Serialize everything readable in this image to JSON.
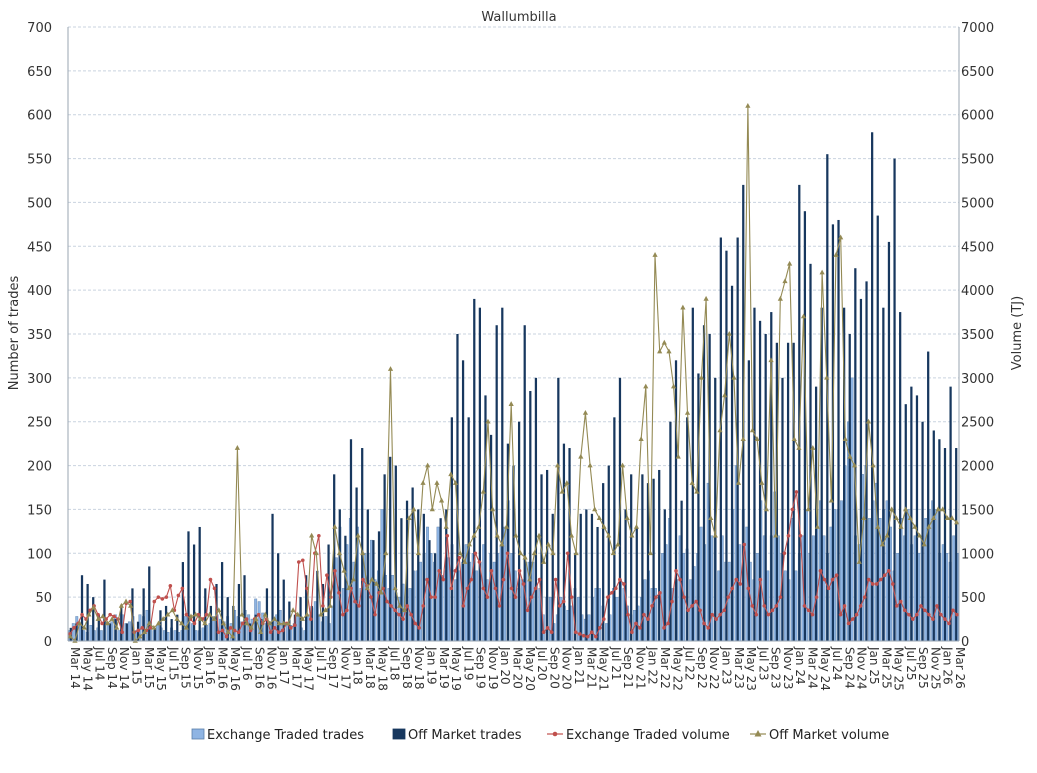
{
  "chart_data": {
    "type": "bar",
    "title": "Wallumbilla",
    "ylabel": "Number of trades",
    "y2label": "Volume (TJ)",
    "ylim": [
      0,
      700
    ],
    "y2lim": [
      0,
      7000
    ],
    "y_ticks": [
      0,
      50,
      100,
      150,
      200,
      250,
      300,
      350,
      400,
      450,
      500,
      550,
      600,
      650,
      700
    ],
    "y2_ticks": [
      0,
      500,
      1000,
      1500,
      2000,
      2500,
      3000,
      3500,
      4000,
      4500,
      5000,
      5500,
      6000,
      6500,
      7000
    ],
    "x_tick_labels": [
      "Mar 14",
      "May 14",
      "Jul 14",
      "Sep 14",
      "Nov 14",
      "Jan 15",
      "Mar 15",
      "May 15",
      "Jul 15",
      "Sep 15",
      "Nov 15",
      "Jan 16",
      "Mar 16",
      "May 16",
      "Jul 16",
      "Sep 16",
      "Nov 16",
      "Jan 17",
      "Mar 17",
      "May 17",
      "Jul 17",
      "Sep 17",
      "Nov 17",
      "Jan 18",
      "Mar 18",
      "May 18",
      "Jul 18",
      "Sep 18",
      "Nov 18",
      "Jan 19",
      "Mar 19",
      "May 19",
      "Jul 19",
      "Sep 19",
      "Nov 19",
      "Jan 20",
      "Mar 20",
      "May 20",
      "Jul 20",
      "Sep 20",
      "Nov 20",
      "Jan 21",
      "Mar 21",
      "May 21",
      "Jul 21",
      "Sep 21",
      "Nov 21",
      "Jan 22",
      "Mar 22",
      "May 22",
      "Jul 22",
      "Sep 22",
      "Nov 22",
      "Jan 23",
      "Mar 23",
      "May 23",
      "Jul 23",
      "Sep 23",
      "Nov 23",
      "Jan 24",
      "Mar 24",
      "May 24",
      "Jul 24",
      "Sep 24",
      "Nov 24",
      "Jan 25",
      "Mar 25",
      "May 25",
      "Jul 25",
      "Sep 25",
      "Nov 25",
      "Jan 26",
      "Mar 26"
    ],
    "grid": true,
    "legend_position": "bottom",
    "colors": {
      "exchange_trades": "#8eb4e3",
      "off_market_trades": "#17375e",
      "exchange_volume": "#c0504d",
      "off_market_volume": "#948a54"
    },
    "bar_series": [
      {
        "name": "Exchange Traded trades",
        "axis": "left",
        "values": [
          12,
          20,
          28,
          20,
          12,
          10,
          18,
          12,
          15,
          12,
          25,
          20,
          22,
          30,
          12,
          30,
          20,
          22,
          28,
          12,
          30,
          28,
          35,
          22,
          12,
          18,
          15,
          12,
          10,
          15,
          12,
          10,
          12,
          28,
          22,
          20,
          12,
          12,
          15,
          18,
          20,
          28,
          30,
          25,
          22,
          28,
          20,
          35,
          28,
          22,
          35,
          30,
          25,
          48,
          45,
          32,
          20,
          22,
          25,
          30,
          35,
          22,
          20,
          18,
          20,
          28,
          15,
          12,
          30,
          38,
          45,
          30,
          22,
          28,
          20,
          40,
          95,
          130,
          60,
          110,
          140,
          90,
          130,
          60,
          100,
          100,
          115,
          70,
          80,
          150,
          75,
          60,
          75,
          55,
          50,
          65,
          60,
          60,
          80,
          80,
          90,
          100,
          130,
          100,
          90,
          130,
          75,
          80,
          95,
          110,
          70,
          80,
          90,
          110,
          90,
          100,
          80,
          90,
          110,
          70,
          100,
          90,
          100,
          110,
          130,
          160,
          100,
          80,
          60,
          70,
          90,
          90,
          90,
          65,
          60,
          30,
          50,
          50,
          20,
          30,
          50,
          40,
          35,
          40,
          60,
          50,
          30,
          25,
          30,
          50,
          60,
          60,
          40,
          20,
          30,
          60,
          50,
          70,
          60,
          40,
          30,
          35,
          40,
          50,
          70,
          80,
          60,
          60,
          50,
          100,
          110,
          140,
          60,
          70,
          120,
          100,
          105,
          70,
          85,
          100,
          130,
          110,
          180,
          120,
          120,
          80,
          120,
          90,
          90,
          150,
          200,
          110,
          150,
          130,
          90,
          70,
          100,
          160,
          120,
          80,
          120,
          170,
          120,
          100,
          80,
          70,
          140,
          80,
          100,
          120,
          150,
          100,
          120,
          150,
          160,
          120,
          100,
          130,
          150,
          150,
          160,
          200,
          250,
          300,
          120,
          110,
          190,
          200,
          140,
          160,
          180,
          140,
          150,
          160,
          130,
          80,
          100,
          140,
          120,
          150,
          110,
          120,
          100,
          120,
          140,
          150,
          160,
          150,
          100,
          110,
          100,
          90,
          120,
          100
        ]
      },
      {
        "name": "Off Market trades",
        "axis": "left",
        "values": [
          15,
          20,
          75,
          65,
          50,
          30,
          70,
          20,
          25,
          40,
          20,
          60,
          22,
          60,
          85,
          15,
          35,
          40,
          25,
          30,
          90,
          125,
          110,
          130,
          60,
          40,
          65,
          90,
          50,
          40,
          65,
          75,
          20,
          30,
          25,
          60,
          145,
          100,
          70,
          45,
          30,
          50,
          75,
          40,
          80,
          65,
          110,
          190,
          150,
          120,
          230,
          175,
          220,
          150,
          115,
          125,
          190,
          210,
          200,
          140,
          160,
          175,
          150,
          145,
          115,
          100,
          140,
          150,
          255,
          350,
          320,
          255,
          390,
          380,
          280,
          235,
          360,
          380,
          225,
          200,
          250,
          360,
          285,
          300,
          190,
          195,
          145,
          300,
          225,
          220,
          100,
          145,
          150,
          145,
          130,
          180,
          200,
          255,
          300,
          150,
          190,
          130,
          190,
          180,
          185,
          195,
          150,
          250,
          320,
          160,
          255,
          380,
          305,
          360,
          350,
          300,
          460,
          445,
          405,
          460,
          520,
          320,
          380,
          365,
          350,
          375,
          340,
          300,
          340,
          340,
          520,
          490,
          430,
          290,
          380,
          555,
          475,
          480,
          380,
          350,
          425,
          390,
          410,
          580,
          485,
          380,
          455,
          550,
          375,
          270,
          290,
          280,
          250,
          330,
          240,
          230,
          220,
          290,
          220
        ]
      }
    ],
    "line_series": [
      {
        "name": "Exchange Traded volume",
        "axis": "right",
        "values": [
          80,
          150,
          200,
          300,
          250,
          350,
          400,
          300,
          200,
          250,
          300,
          280,
          250,
          100,
          430,
          450,
          100,
          120,
          150,
          120,
          150,
          450,
          500,
          480,
          500,
          630,
          350,
          520,
          600,
          300,
          250,
          200,
          300,
          250,
          300,
          700,
          600,
          100,
          120,
          50,
          150,
          120,
          100,
          200,
          250,
          120,
          250,
          300,
          200,
          250,
          100,
          150,
          100,
          120,
          200,
          150,
          180,
          900,
          920,
          600,
          250,
          1000,
          1200,
          400,
          750,
          500,
          800,
          550,
          300,
          350,
          600,
          450,
          400,
          700,
          630,
          500,
          300,
          550,
          600,
          450,
          400,
          350,
          300,
          250,
          400,
          300,
          200,
          150,
          400,
          700,
          500,
          500,
          800,
          700,
          1200,
          600,
          800,
          950,
          400,
          600,
          700,
          1000,
          900,
          600,
          500,
          800,
          600,
          400,
          700,
          1000,
          600,
          500,
          800,
          650,
          350,
          500,
          600,
          700,
          100,
          150,
          100,
          700,
          400,
          450,
          1000,
          500,
          100,
          80,
          60,
          50,
          100,
          50,
          150,
          250,
          500,
          550,
          600,
          700,
          650,
          300,
          100,
          200,
          150,
          300,
          250,
          400,
          500,
          550,
          150,
          200,
          450,
          800,
          700,
          500,
          350,
          400,
          450,
          350,
          200,
          150,
          300,
          250,
          300,
          350,
          500,
          600,
          700,
          650,
          1100,
          600,
          400,
          300,
          700,
          400,
          300,
          350,
          400,
          500,
          1000,
          1200,
          1500,
          1700,
          1200,
          400,
          350,
          300,
          500,
          800,
          700,
          600,
          700,
          750,
          300,
          400,
          200,
          250,
          300,
          400,
          500,
          700,
          650,
          650,
          700,
          750,
          800,
          650,
          400,
          450,
          350,
          300,
          250,
          300,
          400,
          350,
          300,
          250,
          400,
          300,
          250,
          200,
          350,
          300
        ]
      },
      {
        "name": "Off Market volume",
        "axis": "right",
        "values": [
          50,
          0,
          200,
          150,
          300,
          380,
          250,
          280,
          200,
          250,
          150,
          400,
          450,
          400,
          0,
          50,
          100,
          200,
          150,
          200,
          250,
          300,
          350,
          250,
          200,
          150,
          280,
          300,
          250,
          200,
          300,
          250,
          350,
          200,
          100,
          50,
          2200,
          300,
          200,
          150,
          250,
          100,
          300,
          200,
          250,
          200,
          200,
          200,
          350,
          300,
          250,
          300,
          1200,
          1000,
          300,
          350,
          400,
          1300,
          1000,
          800,
          600,
          700,
          1200,
          1000,
          600,
          700,
          650,
          550,
          1000,
          3100,
          600,
          400,
          350,
          1400,
          1500,
          1000,
          1800,
          2000,
          1500,
          1800,
          1600,
          1300,
          1900,
          1800,
          1000,
          900,
          1100,
          1200,
          1300,
          1700,
          2500,
          1500,
          1200,
          1100,
          1300,
          2700,
          1200,
          1000,
          950,
          700,
          1000,
          1200,
          900,
          1100,
          1000,
          2000,
          1700,
          1800,
          1200,
          1000,
          2100,
          2600,
          2000,
          1500,
          1400,
          1300,
          1200,
          1000,
          1100,
          2000,
          1400,
          1200,
          1300,
          2300,
          2900,
          1000,
          4400,
          3300,
          3400,
          3300,
          2900,
          2100,
          3800,
          2600,
          1800,
          1700,
          3000,
          3900,
          1400,
          1200,
          2400,
          2800,
          3500,
          3000,
          1800,
          2300,
          6100,
          2400,
          2300,
          1800,
          1500,
          3200,
          1200,
          3900,
          4100,
          4300,
          2300,
          2200,
          3700,
          1500,
          2200,
          1300,
          4200,
          3000,
          1600,
          4400,
          4600,
          2300,
          2100,
          2000,
          900,
          1400,
          2500,
          2000,
          1300,
          1100,
          1200,
          1500,
          1400,
          1300,
          1500,
          1400,
          1300,
          1200,
          1100,
          1300,
          1400,
          1500,
          1500,
          1400,
          1400,
          1350
        ]
      }
    ]
  }
}
